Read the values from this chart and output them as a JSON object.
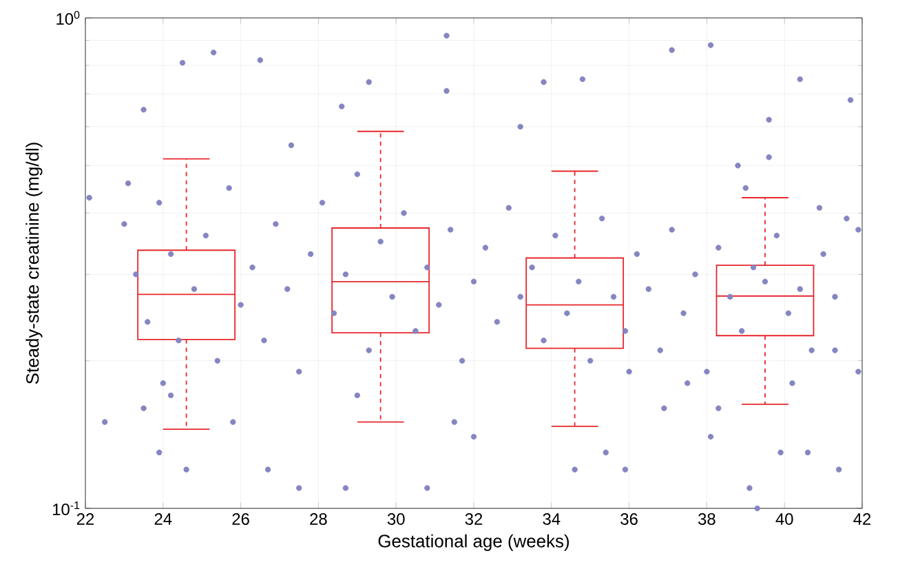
{
  "chart_data": {
    "type": "scatter",
    "xlabel": "Gestational age (weeks)",
    "ylabel": "Steady-state creatinine (mg/dl)",
    "log": "y",
    "grid": true,
    "xlim": [
      22,
      42
    ],
    "xticks": [
      22,
      24,
      26,
      28,
      30,
      32,
      34,
      36,
      38,
      40,
      42
    ],
    "ylim": [
      0.1,
      1
    ],
    "yticks": [
      {
        "value": 0.1,
        "label": "10$^{-1}$"
      },
      {
        "value": 1,
        "label": "10$^{0}$"
      }
    ],
    "series": [
      {
        "color": "#8585c2",
        "x": [
          22.1,
          23.1,
          23.5,
          24.5,
          25.3,
          26.5,
          27.3,
          28.6,
          29.3,
          31.3,
          31.3,
          33.2,
          33.8,
          34.8,
          37.1,
          38.1,
          40.4,
          39.6,
          41.7,
          40.9,
          41.9,
          41.3,
          41.9,
          41.4,
          40.6,
          39.9,
          39.1,
          39.3,
          38.1,
          38.3,
          36.9,
          35.9,
          35.4,
          34.6,
          32.0,
          31.5,
          30.8,
          28.7,
          27.5,
          26.7,
          25.8,
          24.6,
          23.9,
          23.5,
          22.5,
          24.2,
          23.0,
          23.3,
          23.6,
          23.9,
          24.2,
          24.4,
          24.8,
          25.1,
          25.4,
          25.7,
          26.0,
          26.3,
          26.6,
          26.9,
          27.2,
          27.5,
          27.8,
          28.1,
          28.4,
          28.7,
          29.0,
          29.3,
          29.6,
          29.9,
          30.2,
          30.5,
          30.8,
          31.1,
          31.4,
          31.7,
          32.0,
          32.3,
          32.6,
          32.9,
          33.2,
          33.5,
          33.8,
          34.1,
          34.4,
          34.7,
          35.0,
          35.3,
          35.6,
          35.9,
          36.2,
          36.5,
          36.8,
          37.1,
          37.4,
          37.7,
          38.0,
          38.3,
          38.6,
          38.9,
          39.2,
          39.5,
          39.8,
          40.1,
          40.4,
          40.7,
          41.0,
          41.3,
          41.6,
          39.0,
          38.8,
          39.6,
          40.2,
          37.5,
          36.0,
          24.0,
          29.0
        ],
        "values": [
          0.43,
          0.46,
          0.65,
          0.81,
          0.85,
          0.82,
          0.55,
          0.66,
          0.74,
          0.92,
          0.71,
          0.6,
          0.74,
          0.75,
          0.86,
          0.88,
          0.75,
          0.62,
          0.68,
          0.41,
          0.37,
          0.21,
          0.19,
          0.12,
          0.13,
          0.13,
          0.11,
          0.1,
          0.14,
          0.16,
          0.16,
          0.12,
          0.13,
          0.12,
          0.14,
          0.15,
          0.11,
          0.11,
          0.11,
          0.12,
          0.15,
          0.12,
          0.13,
          0.16,
          0.15,
          0.17,
          0.38,
          0.3,
          0.24,
          0.42,
          0.33,
          0.22,
          0.28,
          0.36,
          0.2,
          0.45,
          0.26,
          0.31,
          0.22,
          0.38,
          0.28,
          0.19,
          0.33,
          0.42,
          0.25,
          0.3,
          0.48,
          0.21,
          0.35,
          0.27,
          0.4,
          0.23,
          0.31,
          0.26,
          0.37,
          0.2,
          0.29,
          0.34,
          0.24,
          0.41,
          0.27,
          0.31,
          0.22,
          0.36,
          0.25,
          0.29,
          0.2,
          0.39,
          0.27,
          0.23,
          0.33,
          0.28,
          0.21,
          0.37,
          0.25,
          0.3,
          0.19,
          0.34,
          0.27,
          0.23,
          0.31,
          0.29,
          0.36,
          0.25,
          0.28,
          0.21,
          0.33,
          0.27,
          0.39,
          0.45,
          0.5,
          0.52,
          0.18,
          0.18,
          0.19,
          0.18,
          0.17
        ]
      },
      {
        "type": "box",
        "color": "#e8262b",
        "x": [
          24.6,
          29.6,
          34.6,
          39.5
        ],
        "boxes": [
          {
            "low": 0.145,
            "q1": 0.221,
            "median": 0.273,
            "q3": 0.336,
            "high": 0.516
          },
          {
            "low": 0.15,
            "q1": 0.228,
            "median": 0.29,
            "q3": 0.373,
            "high": 0.587
          },
          {
            "low": 0.147,
            "q1": 0.212,
            "median": 0.26,
            "q3": 0.324,
            "high": 0.487
          },
          {
            "low": 0.163,
            "q1": 0.225,
            "median": 0.271,
            "q3": 0.313,
            "high": 0.43
          }
        ]
      }
    ]
  }
}
